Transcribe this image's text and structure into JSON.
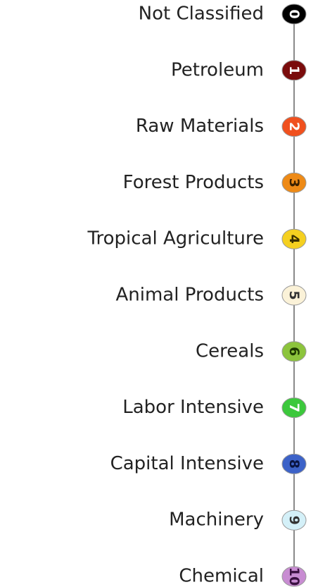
{
  "legend": {
    "items": [
      {
        "label": "Not Classified",
        "number": "0",
        "color": "#000000",
        "number_color": "#ffffff"
      },
      {
        "label": "Petroleum",
        "number": "1",
        "color": "#7a0c0c",
        "number_color": "#ffffff"
      },
      {
        "label": "Raw Materials",
        "number": "2",
        "color": "#f0501e",
        "number_color": "#ffffff"
      },
      {
        "label": "Forest Products",
        "number": "3",
        "color": "#ee8a16",
        "number_color": "#3a2000"
      },
      {
        "label": "Tropical Agriculture",
        "number": "4",
        "color": "#f5d020",
        "number_color": "#3a3000"
      },
      {
        "label": "Animal Products",
        "number": "5",
        "color": "#fbf2d8",
        "number_color": "#333333"
      },
      {
        "label": "Cereals",
        "number": "6",
        "color": "#8cc43c",
        "number_color": "#1e3a00"
      },
      {
        "label": "Labor Intensive",
        "number": "7",
        "color": "#3cc83c",
        "number_color": "#ffffff"
      },
      {
        "label": "Capital Intensive",
        "number": "8",
        "color": "#3c62c8",
        "number_color": "#0a1440"
      },
      {
        "label": "Machinery",
        "number": "9",
        "color": "#d4f0f8",
        "number_color": "#333333"
      },
      {
        "label": "Chemical",
        "number": "10",
        "color": "#c88cd2",
        "number_color": "#3a1040"
      }
    ]
  }
}
